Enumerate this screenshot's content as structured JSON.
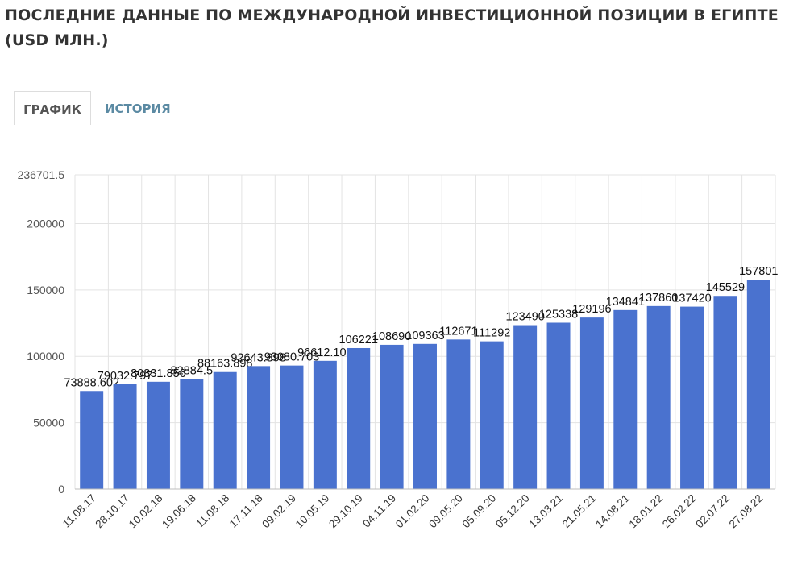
{
  "page": {
    "title": "ПОСЛЕДНИЕ ДАННЫЕ ПО МЕЖДУНАРОДНОЙ ИНВЕСТИЦИОННОЙ ПОЗИЦИИ В ЕГИПТЕ (USD МЛН.)"
  },
  "tabs": [
    {
      "label": "ГРАФИК",
      "active": true
    },
    {
      "label": "ИСТОРИЯ",
      "active": false
    }
  ],
  "colors": {
    "bar": "#4a72cf",
    "grid": "#e3e3e3",
    "inactive_tab": "#5b8aa3"
  },
  "chart_data": {
    "type": "bar",
    "title": "",
    "xlabel": "",
    "ylabel": "",
    "ylim": [
      0,
      236701.5
    ],
    "yticks": [
      "0",
      "50000",
      "100000",
      "150000",
      "200000",
      "236701.5"
    ],
    "ytick_values": [
      0,
      50000,
      100000,
      150000,
      200000,
      236701.5
    ],
    "grid": true,
    "categories": [
      "11.08.17",
      "28.10.17",
      "10.02.18",
      "19.06.18",
      "11.08.18",
      "17.11.18",
      "09.02.19",
      "10.05.19",
      "29.10.19",
      "04.11.19",
      "01.02.20",
      "09.05.20",
      "05.09.20",
      "05.12.20",
      "13.03.21",
      "21.05.21",
      "14.08.21",
      "18.01.22",
      "26.02.22",
      "02.07.22",
      "27.08.22"
    ],
    "values": [
      73888.602,
      79032.797,
      80831.856,
      82884.5,
      88163.898,
      92643.898,
      93080.703,
      96612.102,
      106221,
      108690,
      109363,
      112671,
      111292,
      123490,
      125338,
      129196,
      134841,
      137860,
      137420,
      145529,
      157801
    ],
    "value_labels": [
      "73888.602",
      "79032.797",
      "80831.856",
      "82884.5",
      "88163.898",
      "92643.898",
      "93080.703",
      "96612.102",
      "106221",
      "108690",
      "109363",
      "112671",
      "111292",
      "123490",
      "125338",
      "129196",
      "134841",
      "137860",
      "137420",
      "145529",
      "157801"
    ]
  }
}
